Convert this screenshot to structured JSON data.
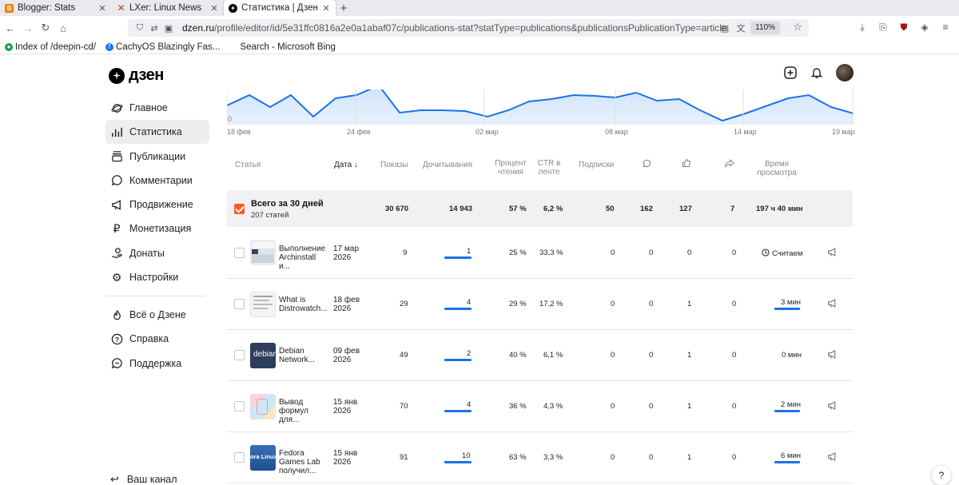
{
  "browser": {
    "tabs": [
      {
        "label": "Blogger: Stats",
        "icon": "blogger-icon",
        "active": false
      },
      {
        "label": "LXer: Linux News",
        "icon": "lxer-icon",
        "active": false
      },
      {
        "label": "Статистика | Дзен",
        "icon": "dzen-icon",
        "active": true
      }
    ],
    "url_host": "dzen.ru",
    "url_path": "/profile/editor/id/5e31ffc0816a2e0a1abaf07c/publications-stat?statType=publications&publicationsPublicationType=article",
    "zoom": "110%",
    "bookmarks": [
      {
        "label": "Index of /deepin-cd/",
        "icon": "deepin-icon"
      },
      {
        "label": "CachyOS Blazingly Fas...",
        "icon": "facebook-icon"
      },
      {
        "label": "Search - Microsoft Bing",
        "icon": "search-icon"
      }
    ]
  },
  "header": {
    "logo_text": "дзен"
  },
  "sidebar": {
    "items": [
      {
        "label": "Главное",
        "icon": "planet-icon"
      },
      {
        "label": "Статистика",
        "icon": "bar-chart-icon",
        "active": true
      },
      {
        "label": "Публикации",
        "icon": "stack-icon"
      },
      {
        "label": "Комментарии",
        "icon": "comment-icon"
      },
      {
        "label": "Продвижение",
        "icon": "megaphone-icon"
      },
      {
        "label": "Монетизация",
        "icon": "ruble-icon"
      },
      {
        "label": "Донаты",
        "icon": "donate-icon"
      },
      {
        "label": "Настройки",
        "icon": "gear-icon"
      }
    ],
    "secondary": [
      {
        "label": "Всё о Дзене",
        "icon": "flame-icon"
      },
      {
        "label": "Справка",
        "icon": "question-icon"
      },
      {
        "label": "Поддержка",
        "icon": "support-icon"
      }
    ],
    "bottom_label": "Ваш канал"
  },
  "chart_data": {
    "type": "area",
    "y_label": "0",
    "x_ticks": [
      "18 фев",
      "24 фев",
      "02 мар",
      "08 мар",
      "14 мар",
      "19 мар"
    ]
  },
  "table": {
    "columns": {
      "article": "Статья",
      "date": "Дата",
      "shows": "Показы",
      "reads": "Дочитывания",
      "read_pct": "Процент чтения",
      "ctr": "CTR в ленте",
      "subs": "Подписки",
      "time": "Время просмотра"
    },
    "summary": {
      "title": "Всего за 30 дней",
      "subtitle": "207 статей",
      "shows": "30 670",
      "reads": "14 943",
      "read_pct": "57 %",
      "ctr": "6,2 %",
      "subs": "50",
      "comments": "162",
      "likes": "127",
      "shares": "7",
      "time": "197 ч 40 мин"
    },
    "rows": [
      {
        "title": "Выполнение Archinstall и...",
        "date": "17 мар 2026",
        "shows": "9",
        "reads": "1",
        "read_pct": "25 %",
        "ctr": "33,3 %",
        "subs": "0",
        "comments": "0",
        "likes": "0",
        "shares": "0",
        "time": "Считаем",
        "thumb": "screenshot"
      },
      {
        "title": "What is Distrowatch...",
        "date": "18 фев 2026",
        "shows": "29",
        "reads": "4",
        "read_pct": "29 %",
        "ctr": "17,2 %",
        "subs": "0",
        "comments": "0",
        "likes": "1",
        "shares": "0",
        "time": "3 мин",
        "thumb": "doc"
      },
      {
        "title": "Debian Network...",
        "date": "09 фев 2026",
        "shows": "49",
        "reads": "2",
        "read_pct": "40 %",
        "ctr": "6,1 %",
        "subs": "0",
        "comments": "0",
        "likes": "1",
        "shares": "0",
        "time": "0 мин",
        "thumb": "debian",
        "thumb_text": "debian"
      },
      {
        "title": "Вывод формул для...",
        "date": "15 янв 2026",
        "shows": "70",
        "reads": "4",
        "read_pct": "36 %",
        "ctr": "4,3 %",
        "subs": "0",
        "comments": "0",
        "likes": "1",
        "shares": "0",
        "time": "2 мин",
        "thumb": "pastel"
      },
      {
        "title": "Fedora Games Lab получил...",
        "date": "15 янв 2026",
        "shows": "91",
        "reads": "10",
        "read_pct": "63 %",
        "ctr": "3,3 %",
        "subs": "0",
        "comments": "0",
        "likes": "1",
        "shares": "0",
        "time": "6 мин",
        "thumb": "fedora",
        "thumb_text": "ora Linux"
      }
    ]
  }
}
